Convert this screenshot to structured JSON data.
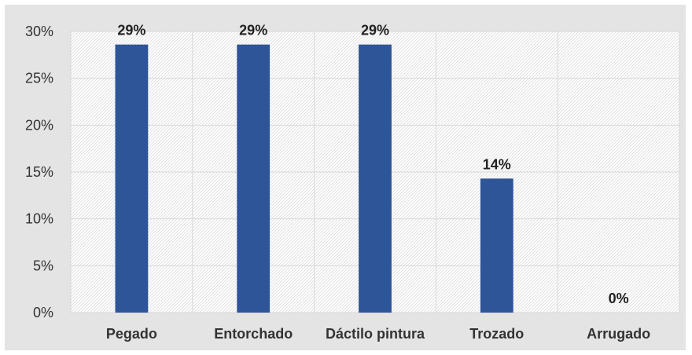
{
  "chart_data": {
    "type": "bar",
    "categories": [
      "Pegado",
      "Entorchado",
      "Dáctilo pintura",
      "Trozado",
      "Arrugado"
    ],
    "values": [
      28.6,
      28.6,
      28.6,
      14.3,
      0
    ],
    "data_labels": [
      "29%",
      "29%",
      "29%",
      "14%",
      "0%"
    ],
    "yticks": [
      "0%",
      "5%",
      "10%",
      "15%",
      "20%",
      "25%",
      "30%"
    ],
    "ylim": [
      0,
      30
    ],
    "grid": true,
    "legend": "none",
    "bar_color": "#2e5597",
    "background_color": "#e4e4e4",
    "plot_background_color": "#ffffff",
    "grid_color": "#d9d9d9"
  }
}
